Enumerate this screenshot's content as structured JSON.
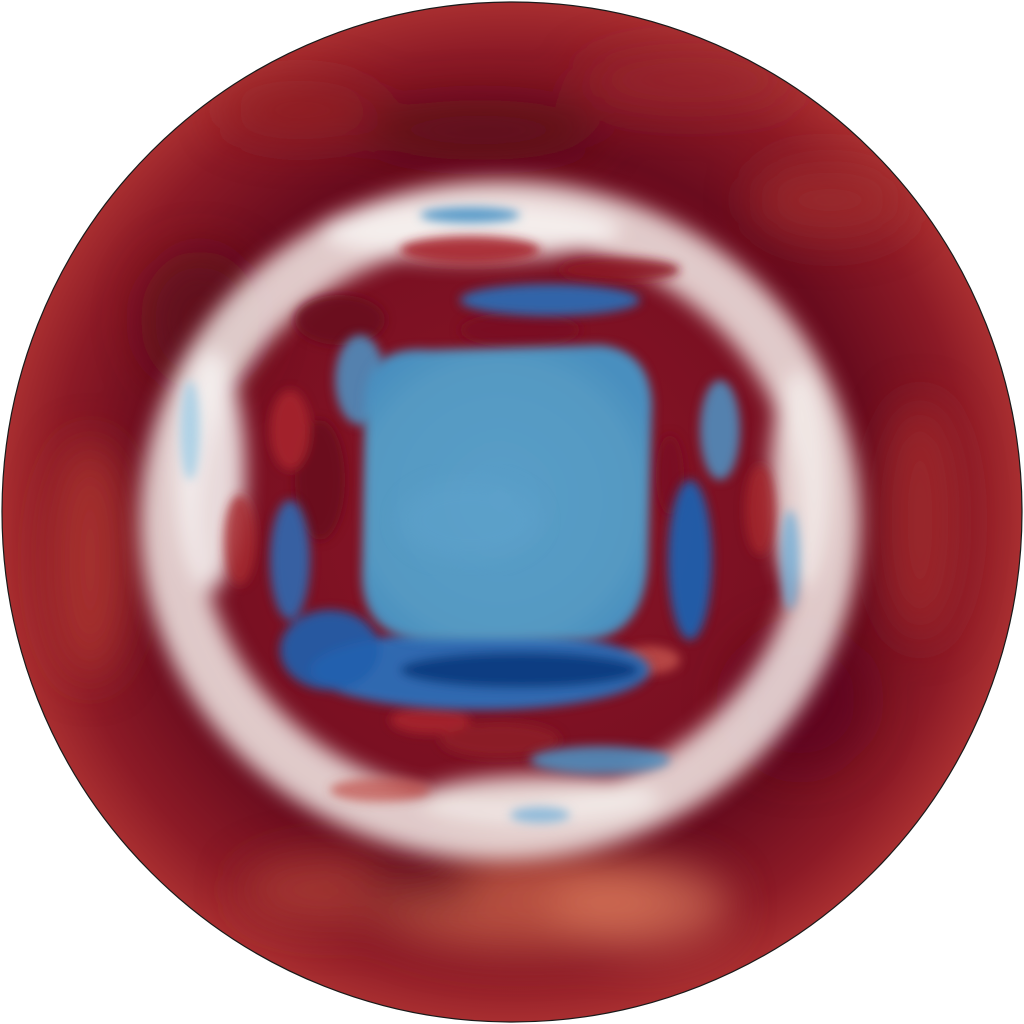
{
  "figure": {
    "kind": "polar contour field plot",
    "description_shown": "",
    "colors": {
      "background": "#ffffff",
      "outline": "#1a1a1a",
      "red_darkest": "#5c0a1c",
      "red_dark": "#7a1022",
      "red_mid": "#a6262d",
      "red_light": "#d0694f",
      "white": "#f7f3f0",
      "blue_light": "#a9cfe5",
      "blue_mid": "#4c95c7",
      "blue_core": "#5499c2",
      "blue_dark": "#1f5fae",
      "blue_darkest": "#103a80"
    }
  }
}
